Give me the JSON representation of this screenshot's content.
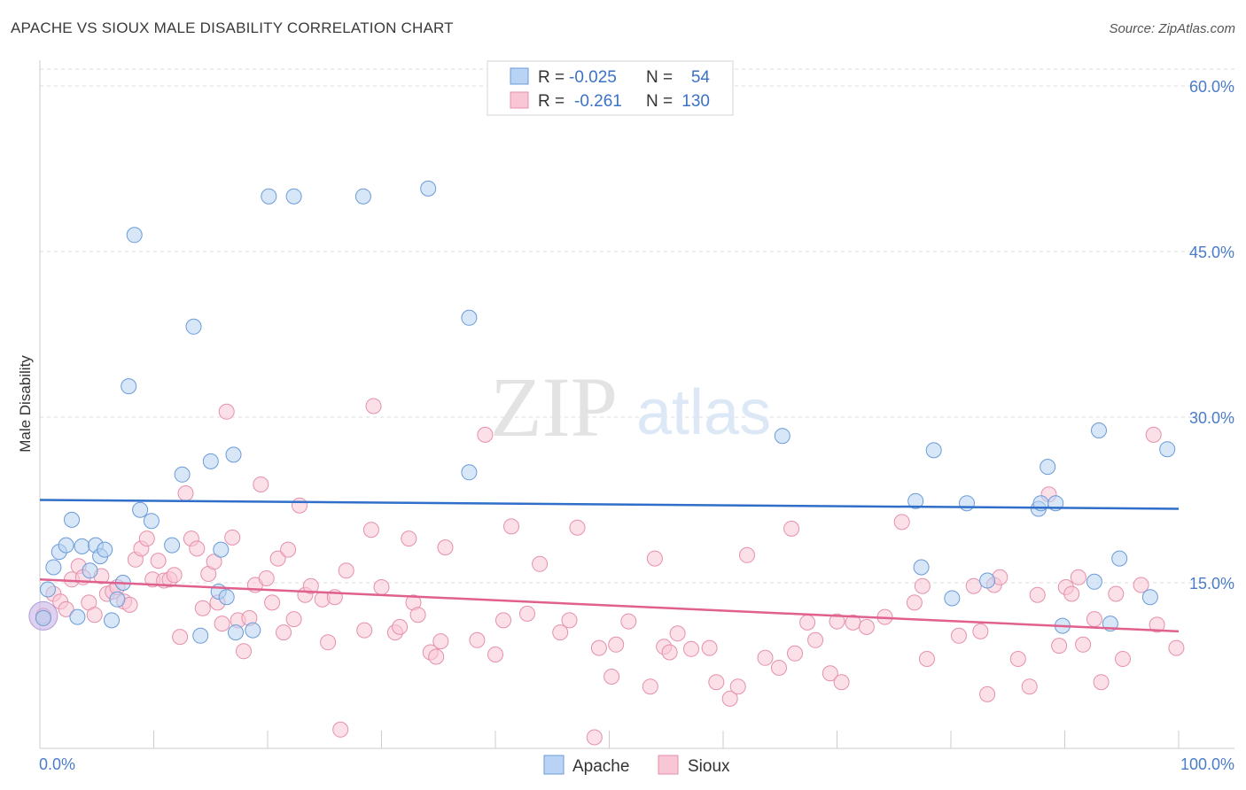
{
  "title": "APACHE VS SIOUX MALE DISABILITY CORRELATION CHART",
  "source": "Source: ZipAtlas.com",
  "watermark": {
    "zip": "ZIP",
    "atlas": "atlas"
  },
  "colors": {
    "apache_fill": "#b8d3f3",
    "apache_stroke": "#6a9bd8",
    "apache_line": "#2f6fc9",
    "sioux_fill": "#f9c6d6",
    "sioux_stroke": "#e590ac",
    "sioux_line": "#e0608e",
    "grid": "#dddddd",
    "tick_text": "#4a7cc9"
  },
  "legend": {
    "rows": [
      {
        "r_label": "R =",
        "r_value": "-0.025",
        "n_label": "N =",
        "n_value": "54"
      },
      {
        "r_label": "R =",
        "r_value": "-0.261",
        "n_label": "N =",
        "n_value": "130"
      }
    ]
  },
  "chart_data": {
    "type": "scatter",
    "xlabel": "",
    "ylabel": "Male Disability",
    "xlim": [
      0,
      100
    ],
    "ylim": [
      0,
      60
    ],
    "x_tick_labels": [
      "0.0%",
      "100.0%"
    ],
    "y_ticks": [
      15,
      30,
      45,
      60
    ],
    "y_tick_labels": [
      "15.0%",
      "30.0%",
      "45.0%",
      "60.0%"
    ],
    "grid": "horizontal dashed",
    "legend_position": "top-center",
    "series": [
      {
        "name": "Apache",
        "trend": {
          "x": [
            0,
            100
          ],
          "y": [
            22.5,
            21.7
          ]
        },
        "points": [
          [
            0.3,
            11.8
          ],
          [
            0.7,
            14.4
          ],
          [
            1.2,
            16.4
          ],
          [
            1.7,
            17.8
          ],
          [
            2.3,
            18.4
          ],
          [
            2.8,
            20.7
          ],
          [
            3.3,
            11.9
          ],
          [
            3.7,
            18.3
          ],
          [
            4.4,
            16.1
          ],
          [
            4.9,
            18.4
          ],
          [
            5.3,
            17.4
          ],
          [
            5.7,
            18.0
          ],
          [
            6.3,
            11.6
          ],
          [
            6.8,
            13.5
          ],
          [
            7.3,
            15.0
          ],
          [
            7.8,
            32.8
          ],
          [
            8.3,
            46.5
          ],
          [
            8.8,
            21.6
          ],
          [
            9.8,
            20.6
          ],
          [
            11.6,
            18.4
          ],
          [
            12.5,
            24.8
          ],
          [
            13.5,
            38.2
          ],
          [
            14.1,
            10.2
          ],
          [
            15.0,
            26.0
          ],
          [
            15.7,
            14.2
          ],
          [
            15.9,
            18.0
          ],
          [
            16.4,
            13.7
          ],
          [
            17.0,
            26.6
          ],
          [
            17.2,
            10.5
          ],
          [
            18.7,
            10.7
          ],
          [
            20.1,
            50.0
          ],
          [
            22.3,
            50.0
          ],
          [
            28.4,
            50.0
          ],
          [
            34.1,
            50.7
          ],
          [
            37.7,
            39.0
          ],
          [
            37.7,
            25.0
          ],
          [
            65.2,
            28.3
          ],
          [
            76.9,
            22.4
          ],
          [
            77.4,
            16.4
          ],
          [
            78.5,
            27.0
          ],
          [
            80.1,
            13.6
          ],
          [
            81.4,
            22.2
          ],
          [
            83.2,
            15.2
          ],
          [
            87.7,
            21.7
          ],
          [
            87.9,
            22.2
          ],
          [
            88.5,
            25.5
          ],
          [
            89.2,
            22.2
          ],
          [
            89.8,
            11.1
          ],
          [
            92.6,
            15.1
          ],
          [
            93.0,
            28.8
          ],
          [
            94.0,
            11.3
          ],
          [
            94.8,
            17.2
          ],
          [
            97.5,
            13.7
          ],
          [
            99.0,
            27.1
          ]
        ]
      },
      {
        "name": "Sioux",
        "trend": {
          "x": [
            0,
            100
          ],
          "y": [
            15.3,
            10.6
          ]
        },
        "points": [
          [
            0.3,
            12.0
          ],
          [
            1.2,
            14.0
          ],
          [
            1.8,
            13.3
          ],
          [
            2.3,
            12.6
          ],
          [
            2.8,
            15.3
          ],
          [
            3.4,
            16.5
          ],
          [
            3.8,
            15.5
          ],
          [
            4.3,
            13.2
          ],
          [
            4.8,
            12.1
          ],
          [
            5.4,
            15.6
          ],
          [
            5.9,
            14.0
          ],
          [
            6.4,
            14.2
          ],
          [
            6.8,
            14.6
          ],
          [
            7.4,
            13.3
          ],
          [
            7.9,
            13.0
          ],
          [
            8.4,
            17.1
          ],
          [
            8.9,
            18.1
          ],
          [
            9.4,
            19.0
          ],
          [
            9.9,
            15.3
          ],
          [
            10.4,
            17.0
          ],
          [
            10.9,
            15.2
          ],
          [
            11.4,
            15.3
          ],
          [
            11.8,
            15.7
          ],
          [
            12.3,
            10.1
          ],
          [
            12.8,
            23.1
          ],
          [
            13.3,
            19.0
          ],
          [
            13.8,
            18.1
          ],
          [
            14.3,
            12.7
          ],
          [
            14.8,
            15.8
          ],
          [
            15.3,
            16.9
          ],
          [
            15.6,
            13.2
          ],
          [
            16.0,
            11.3
          ],
          [
            16.4,
            30.5
          ],
          [
            16.9,
            19.1
          ],
          [
            17.4,
            11.6
          ],
          [
            17.9,
            8.8
          ],
          [
            18.4,
            11.8
          ],
          [
            18.9,
            14.8
          ],
          [
            19.4,
            23.9
          ],
          [
            19.9,
            15.4
          ],
          [
            20.4,
            13.2
          ],
          [
            20.9,
            17.2
          ],
          [
            21.4,
            10.5
          ],
          [
            21.8,
            18.0
          ],
          [
            22.3,
            11.7
          ],
          [
            22.8,
            22.0
          ],
          [
            23.3,
            13.9
          ],
          [
            23.8,
            14.7
          ],
          [
            24.8,
            13.5
          ],
          [
            25.3,
            9.6
          ],
          [
            25.9,
            13.7
          ],
          [
            26.4,
            1.7
          ],
          [
            26.9,
            16.1
          ],
          [
            28.5,
            10.7
          ],
          [
            29.1,
            19.8
          ],
          [
            29.3,
            31.0
          ],
          [
            30.0,
            14.6
          ],
          [
            31.2,
            10.5
          ],
          [
            31.6,
            11.0
          ],
          [
            32.4,
            19.0
          ],
          [
            32.8,
            13.2
          ],
          [
            33.2,
            12.1
          ],
          [
            34.3,
            8.7
          ],
          [
            34.8,
            8.3
          ],
          [
            35.2,
            9.7
          ],
          [
            35.6,
            18.2
          ],
          [
            38.4,
            9.8
          ],
          [
            39.1,
            28.4
          ],
          [
            40.0,
            8.5
          ],
          [
            40.7,
            11.6
          ],
          [
            41.4,
            20.1
          ],
          [
            42.8,
            12.2
          ],
          [
            43.9,
            16.7
          ],
          [
            45.7,
            10.5
          ],
          [
            46.5,
            11.6
          ],
          [
            47.2,
            20.0
          ],
          [
            48.7,
            1.0
          ],
          [
            49.1,
            9.1
          ],
          [
            50.2,
            6.5
          ],
          [
            50.6,
            9.4
          ],
          [
            51.7,
            11.5
          ],
          [
            53.6,
            5.6
          ],
          [
            54.0,
            17.2
          ],
          [
            54.8,
            9.2
          ],
          [
            55.3,
            8.7
          ],
          [
            56.0,
            10.4
          ],
          [
            57.2,
            9.0
          ],
          [
            58.8,
            9.1
          ],
          [
            59.4,
            6.0
          ],
          [
            60.6,
            4.5
          ],
          [
            61.3,
            5.6
          ],
          [
            62.1,
            17.5
          ],
          [
            63.7,
            8.2
          ],
          [
            64.9,
            7.3
          ],
          [
            66.0,
            19.9
          ],
          [
            66.3,
            8.6
          ],
          [
            67.4,
            11.4
          ],
          [
            68.1,
            9.8
          ],
          [
            69.4,
            6.8
          ],
          [
            70.0,
            11.5
          ],
          [
            70.4,
            6.0
          ],
          [
            71.4,
            11.4
          ],
          [
            72.6,
            11.0
          ],
          [
            74.2,
            11.9
          ],
          [
            75.7,
            20.5
          ],
          [
            76.8,
            13.2
          ],
          [
            77.5,
            14.7
          ],
          [
            77.9,
            8.1
          ],
          [
            80.7,
            10.2
          ],
          [
            82.0,
            14.7
          ],
          [
            82.6,
            10.6
          ],
          [
            83.2,
            4.9
          ],
          [
            83.8,
            14.8
          ],
          [
            84.3,
            15.5
          ],
          [
            85.9,
            8.1
          ],
          [
            86.9,
            5.6
          ],
          [
            87.6,
            13.9
          ],
          [
            88.6,
            23.0
          ],
          [
            89.5,
            9.3
          ],
          [
            90.1,
            14.6
          ],
          [
            90.6,
            14.0
          ],
          [
            91.2,
            15.5
          ],
          [
            91.6,
            9.4
          ],
          [
            92.6,
            11.7
          ],
          [
            93.2,
            6.0
          ],
          [
            94.5,
            14.0
          ],
          [
            95.1,
            8.1
          ],
          [
            96.7,
            14.8
          ],
          [
            97.8,
            28.4
          ],
          [
            98.1,
            11.2
          ],
          [
            99.8,
            9.1
          ]
        ]
      }
    ]
  },
  "bottom_legend": [
    {
      "label": "Apache"
    },
    {
      "label": "Sioux"
    }
  ]
}
